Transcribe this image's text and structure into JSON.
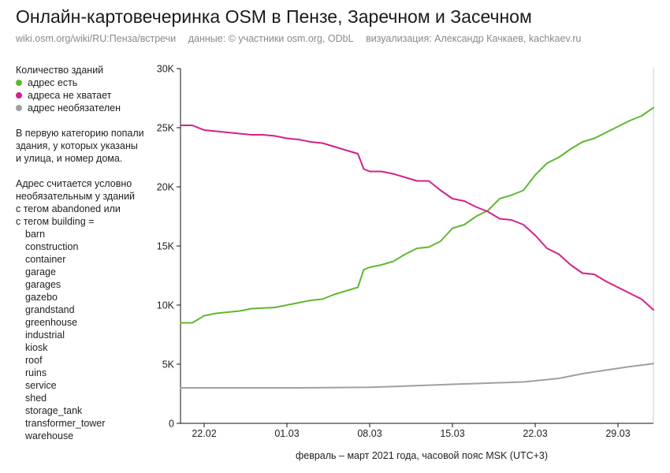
{
  "header": {
    "title": "Онлайн-картовечеринка OSM в Пензе, Заречном и Засечном",
    "source": "wiki.osm.org/wiki/RU:Пенза/встречи",
    "data_credit": "данные: © участники osm.org, ODbL",
    "viz_credit": "визуализация: Александр Качкаев, kachkaev.ru"
  },
  "sidebar": {
    "legend_title": "Количество зданий",
    "legend": [
      {
        "label": "адрес есть",
        "color": "#5fb832"
      },
      {
        "label": "адреса не хватает",
        "color": "#d4208a"
      },
      {
        "label": "адрес необязателен",
        "color": "#a0a0a0"
      }
    ],
    "note1": [
      "В первую категорию попали",
      "здания, у которых указаны",
      "и улица, и номер дома."
    ],
    "note2": [
      "Адрес считается условно",
      "необязательным у зданий",
      "с тегом abandoned или",
      "с тегом building ="
    ],
    "building_tags": [
      "barn",
      "construction",
      "container",
      "garage",
      "garages",
      "gazebo",
      "grandstand",
      "greenhouse",
      "industrial",
      "kiosk",
      "roof",
      "ruins",
      "service",
      "shed",
      "storage_tank",
      "transformer_tower",
      "warehouse"
    ]
  },
  "chart_data": {
    "type": "line",
    "xlabel": "февраль – март 2021 года, часовой пояс MSK (UTC+3)",
    "ylabel": "",
    "x_range": [
      "2021-02-19",
      "2021-03-31"
    ],
    "x_ticks": [
      {
        "date": "2021-02-21",
        "label": "22.02"
      },
      {
        "date": "2021-02-28",
        "label": "01.03"
      },
      {
        "date": "2021-03-07",
        "label": "08.03"
      },
      {
        "date": "2021-03-14",
        "label": "15.03"
      },
      {
        "date": "2021-03-21",
        "label": "22.03"
      },
      {
        "date": "2021-03-28",
        "label": "29.03"
      }
    ],
    "ylim": [
      0,
      30000
    ],
    "y_ticks": [
      {
        "value": 0,
        "label": "0"
      },
      {
        "value": 5000,
        "label": "5K"
      },
      {
        "value": 10000,
        "label": "10K"
      },
      {
        "value": 15000,
        "label": "15K"
      },
      {
        "value": 20000,
        "label": "20K"
      },
      {
        "value": 25000,
        "label": "25K"
      },
      {
        "value": 30000,
        "label": "30K"
      }
    ],
    "grid": false,
    "series": [
      {
        "name": "адрес есть",
        "color": "#5fb832",
        "points": [
          [
            "2021-02-19",
            8500
          ],
          [
            "2021-02-20",
            8500
          ],
          [
            "2021-02-21",
            9100
          ],
          [
            "2021-02-22",
            9300
          ],
          [
            "2021-02-23",
            9400
          ],
          [
            "2021-02-24",
            9500
          ],
          [
            "2021-02-25",
            9700
          ],
          [
            "2021-02-26",
            9750
          ],
          [
            "2021-02-27",
            9800
          ],
          [
            "2021-02-28",
            10000
          ],
          [
            "2021-03-01",
            10200
          ],
          [
            "2021-03-02",
            10400
          ],
          [
            "2021-03-03",
            10500
          ],
          [
            "2021-03-04",
            10900
          ],
          [
            "2021-03-05",
            11200
          ],
          [
            "2021-03-06",
            11500
          ],
          [
            "2021-03-06 12:00",
            13000
          ],
          [
            "2021-03-07",
            13200
          ],
          [
            "2021-03-08",
            13400
          ],
          [
            "2021-03-09",
            13700
          ],
          [
            "2021-03-10",
            14300
          ],
          [
            "2021-03-11",
            14800
          ],
          [
            "2021-03-12",
            14900
          ],
          [
            "2021-03-13",
            15400
          ],
          [
            "2021-03-14",
            16500
          ],
          [
            "2021-03-15",
            16800
          ],
          [
            "2021-03-16",
            17500
          ],
          [
            "2021-03-17",
            18000
          ],
          [
            "2021-03-18",
            19000
          ],
          [
            "2021-03-19",
            19300
          ],
          [
            "2021-03-20",
            19700
          ],
          [
            "2021-03-21",
            21000
          ],
          [
            "2021-03-22",
            22000
          ],
          [
            "2021-03-23",
            22500
          ],
          [
            "2021-03-24",
            23200
          ],
          [
            "2021-03-25",
            23800
          ],
          [
            "2021-03-26",
            24100
          ],
          [
            "2021-03-27",
            24600
          ],
          [
            "2021-03-28",
            25100
          ],
          [
            "2021-03-29",
            25600
          ],
          [
            "2021-03-30",
            26000
          ],
          [
            "2021-03-31",
            26700
          ]
        ]
      },
      {
        "name": "адреса не хватает",
        "color": "#d4208a",
        "points": [
          [
            "2021-02-19",
            25200
          ],
          [
            "2021-02-20",
            25200
          ],
          [
            "2021-02-21",
            24800
          ],
          [
            "2021-02-22",
            24700
          ],
          [
            "2021-02-23",
            24600
          ],
          [
            "2021-02-24",
            24500
          ],
          [
            "2021-02-25",
            24400
          ],
          [
            "2021-02-26",
            24400
          ],
          [
            "2021-02-27",
            24300
          ],
          [
            "2021-02-28",
            24100
          ],
          [
            "2021-03-01",
            24000
          ],
          [
            "2021-03-02",
            23800
          ],
          [
            "2021-03-03",
            23700
          ],
          [
            "2021-03-04",
            23400
          ],
          [
            "2021-03-05",
            23100
          ],
          [
            "2021-03-06",
            22800
          ],
          [
            "2021-03-06 12:00",
            21500
          ],
          [
            "2021-03-07",
            21300
          ],
          [
            "2021-03-08",
            21300
          ],
          [
            "2021-03-09",
            21100
          ],
          [
            "2021-03-10",
            20800
          ],
          [
            "2021-03-11",
            20500
          ],
          [
            "2021-03-12",
            20500
          ],
          [
            "2021-03-13",
            19700
          ],
          [
            "2021-03-14",
            19000
          ],
          [
            "2021-03-15",
            18800
          ],
          [
            "2021-03-16",
            18300
          ],
          [
            "2021-03-17",
            17900
          ],
          [
            "2021-03-18",
            17300
          ],
          [
            "2021-03-19",
            17200
          ],
          [
            "2021-03-20",
            16800
          ],
          [
            "2021-03-21",
            15900
          ],
          [
            "2021-03-22",
            14800
          ],
          [
            "2021-03-23",
            14300
          ],
          [
            "2021-03-24",
            13400
          ],
          [
            "2021-03-25",
            12700
          ],
          [
            "2021-03-26",
            12600
          ],
          [
            "2021-03-27",
            12000
          ],
          [
            "2021-03-28",
            11500
          ],
          [
            "2021-03-29",
            11000
          ],
          [
            "2021-03-30",
            10500
          ],
          [
            "2021-03-31",
            9600
          ]
        ]
      },
      {
        "name": "адрес необязателен",
        "color": "#a0a0a0",
        "points": [
          [
            "2021-02-19",
            3000
          ],
          [
            "2021-02-24",
            3000
          ],
          [
            "2021-03-01",
            3000
          ],
          [
            "2021-03-07",
            3050
          ],
          [
            "2021-03-10",
            3150
          ],
          [
            "2021-03-14",
            3300
          ],
          [
            "2021-03-17",
            3400
          ],
          [
            "2021-03-20",
            3500
          ],
          [
            "2021-03-23",
            3800
          ],
          [
            "2021-03-25",
            4200
          ],
          [
            "2021-03-27",
            4500
          ],
          [
            "2021-03-29",
            4800
          ],
          [
            "2021-03-31",
            5050
          ]
        ]
      }
    ]
  }
}
